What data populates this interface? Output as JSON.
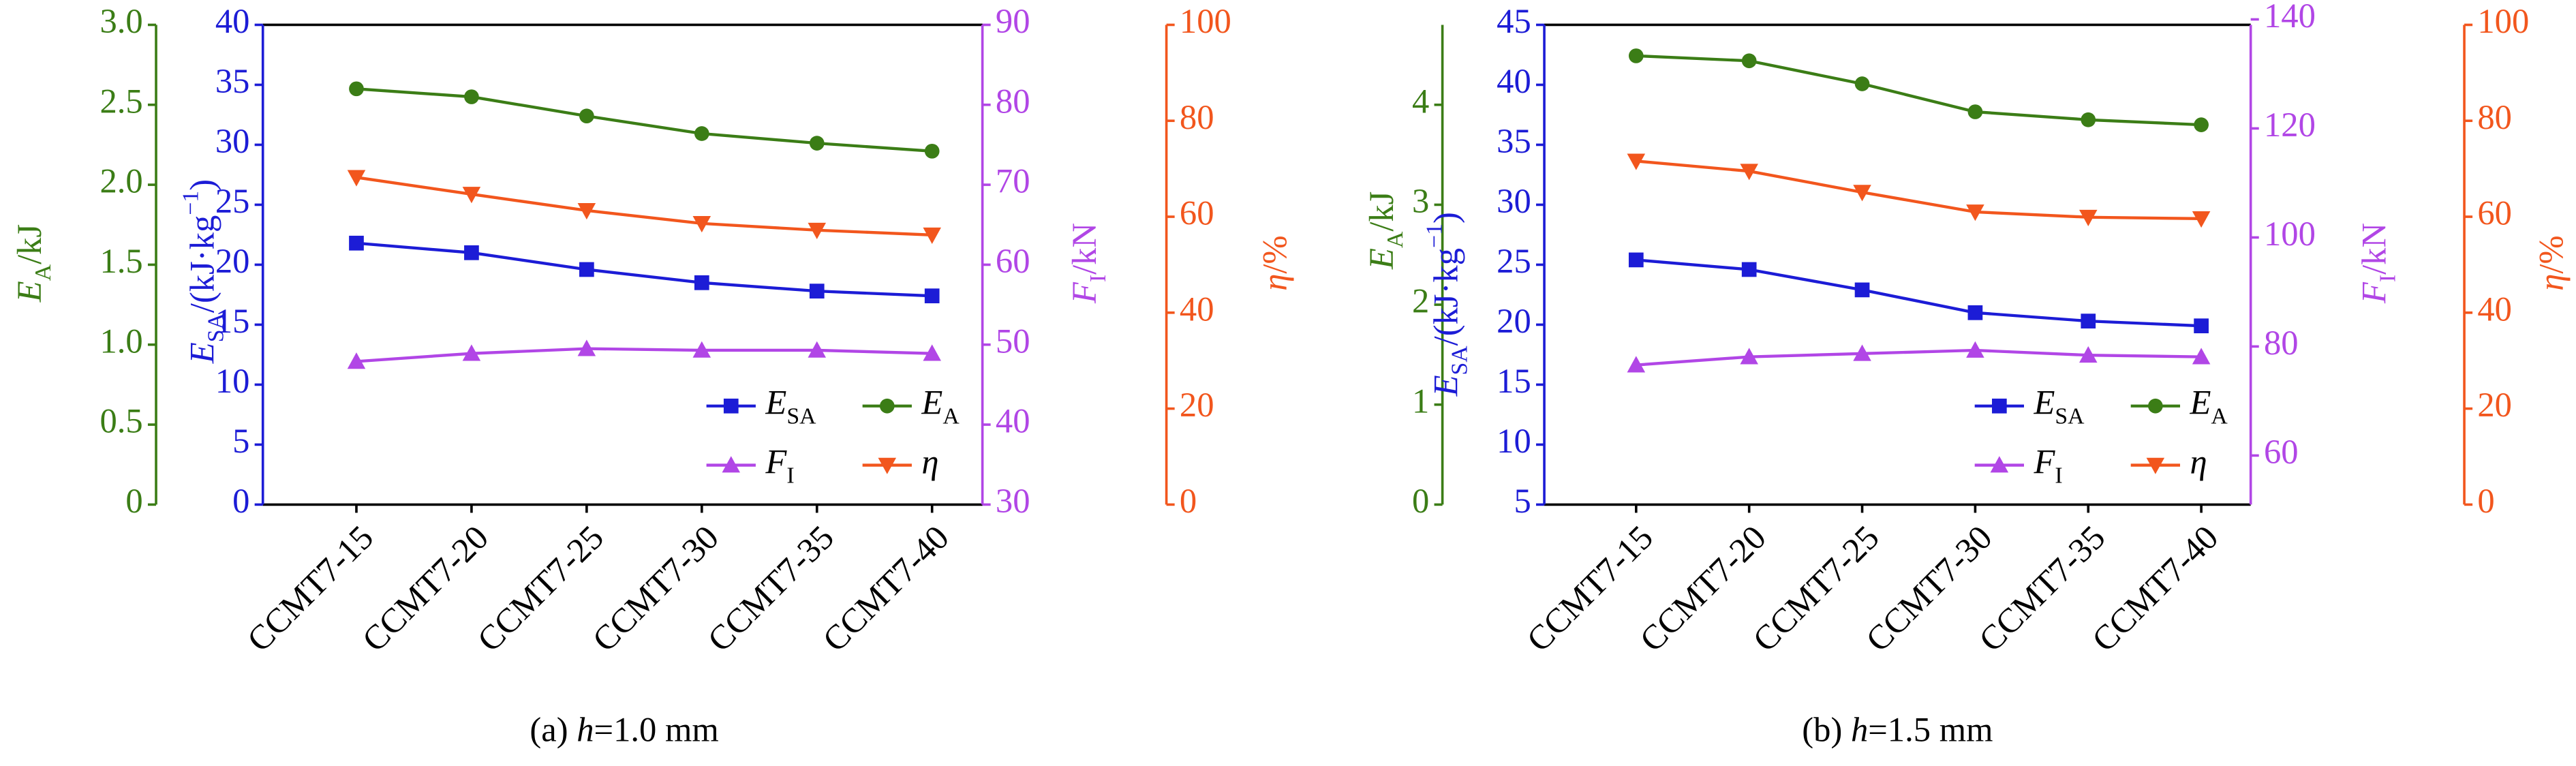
{
  "chart_data": [
    {
      "type": "line",
      "caption": {
        "prefix": "(a) ",
        "var": "h",
        "rest": "=1.0 mm"
      },
      "categories": [
        "CCMT7-15",
        "CCMT7-20",
        "CCMT7-25",
        "CCMT7-30",
        "CCMT7-35",
        "CCMT7-40"
      ],
      "axes": [
        {
          "label": {
            "symbol": "E",
            "sub": "A",
            "unit": "/kJ"
          },
          "color": "#3b7d16",
          "lim": [
            0,
            3
          ],
          "ticks": [
            0,
            0.5,
            {
              "value": 1,
              "label": "1.0"
            },
            1.5,
            {
              "value": 2,
              "label": "2.0"
            },
            2.5,
            {
              "value": 3,
              "label": "3.0"
            }
          ]
        },
        {
          "label": {
            "symbol": "E",
            "sub": "SA",
            "unit": "/(kJ·kg",
            "sup": "−1",
            "close": ")"
          },
          "color": "#1c1cd6",
          "lim": [
            0,
            40
          ],
          "ticks": [
            0,
            5,
            10,
            15,
            20,
            25,
            30,
            35,
            40
          ]
        },
        {
          "label": {
            "symbol": "F",
            "sub": "I",
            "unit": "/kN"
          },
          "color": "#b146e6",
          "lim": [
            30,
            90
          ],
          "ticks": [
            30,
            40,
            50,
            60,
            70,
            80,
            90
          ]
        },
        {
          "label": {
            "symbol": "η",
            "unit": "/%"
          },
          "color": "#f2561d",
          "lim": [
            0,
            100
          ],
          "ticks": [
            0,
            20,
            40,
            60,
            80,
            100
          ]
        }
      ],
      "series": [
        {
          "name": {
            "symbol": "E",
            "sub": "SA"
          },
          "color": "#1c1cd6",
          "marker": "square",
          "axis": 1,
          "values": [
            21.8,
            21.0,
            19.6,
            18.5,
            17.8,
            17.4
          ]
        },
        {
          "name": {
            "symbol": "E",
            "sub": "A"
          },
          "color": "#3b7d16",
          "marker": "circle",
          "axis": 0,
          "values": [
            2.6,
            2.55,
            2.43,
            2.32,
            2.26,
            2.21
          ]
        },
        {
          "name": {
            "symbol": "F",
            "sub": "I"
          },
          "color": "#b146e6",
          "marker": "triangle-up",
          "axis": 2,
          "values": [
            47.9,
            48.9,
            49.5,
            49.3,
            49.3,
            48.9
          ]
        },
        {
          "name": {
            "symbol": "η"
          },
          "color": "#f2561d",
          "marker": "triangle-down",
          "axis": 3,
          "values": [
            68.2,
            64.7,
            61.3,
            58.6,
            57.2,
            56.2
          ]
        }
      ]
    },
    {
      "type": "line",
      "caption": {
        "prefix": "(b) ",
        "var": "h",
        "rest": "=1.5 mm"
      },
      "categories": [
        "CCMT7-15",
        "CCMT7-20",
        "CCMT7-25",
        "CCMT7-30",
        "CCMT7-35",
        "CCMT7-40"
      ],
      "axes": [
        {
          "label": {
            "symbol": "E",
            "sub": "A",
            "unit": "/kJ"
          },
          "color": "#3b7d16",
          "lim": [
            0,
            4.8
          ],
          "ticks": [
            0,
            1,
            2,
            3,
            4
          ]
        },
        {
          "label": {
            "symbol": "E",
            "sub": "SA",
            "unit": "/(kJ·kg",
            "sup": "−1",
            "close": ")"
          },
          "color": "#1c1cd6",
          "lim": [
            5,
            45
          ],
          "ticks": [
            5,
            10,
            15,
            20,
            25,
            30,
            35,
            40,
            45
          ]
        },
        {
          "label": {
            "symbol": "F",
            "sub": "I",
            "unit": "/kN"
          },
          "color": "#b146e6",
          "lim": [
            51,
            139
          ],
          "ticks": [
            60,
            80,
            100,
            120,
            140
          ]
        },
        {
          "label": {
            "symbol": "η",
            "unit": "/%"
          },
          "color": "#f2561d",
          "lim": [
            0,
            100
          ],
          "ticks": [
            0,
            20,
            40,
            60,
            80,
            100
          ]
        }
      ],
      "series": [
        {
          "name": {
            "symbol": "E",
            "sub": "SA"
          },
          "color": "#1c1cd6",
          "marker": "square",
          "axis": 1,
          "values": [
            25.4,
            24.6,
            22.9,
            21.0,
            20.3,
            19.9
          ]
        },
        {
          "name": {
            "symbol": "E",
            "sub": "A"
          },
          "color": "#3b7d16",
          "marker": "circle",
          "axis": 0,
          "values": [
            4.49,
            4.44,
            4.21,
            3.93,
            3.85,
            3.8
          ]
        },
        {
          "name": {
            "symbol": "F",
            "sub": "I"
          },
          "color": "#b146e6",
          "marker": "triangle-up",
          "axis": 2,
          "values": [
            76.6,
            78.1,
            78.7,
            79.3,
            78.4,
            78.1
          ]
        },
        {
          "name": {
            "symbol": "η"
          },
          "color": "#f2561d",
          "marker": "triangle-down",
          "axis": 3,
          "values": [
            71.6,
            69.5,
            65.1,
            61.0,
            59.9,
            59.6
          ]
        }
      ]
    }
  ]
}
